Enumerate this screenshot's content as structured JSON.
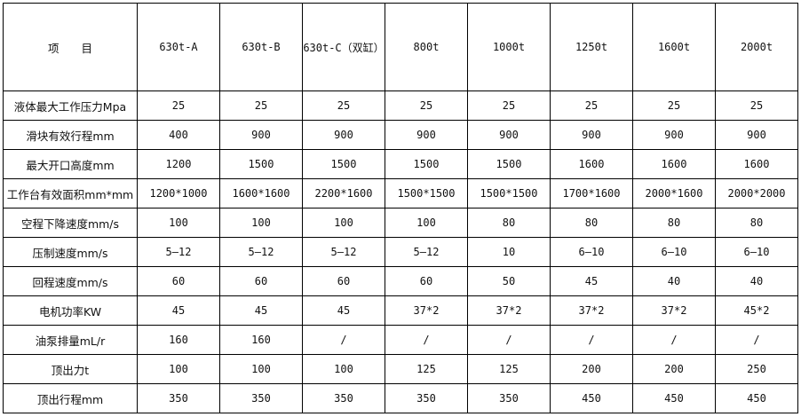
{
  "table": {
    "header": [
      "项　　目",
      "630t-A",
      "630t-B",
      "630t-C（双缸）",
      "800t",
      "1000t",
      "1250t",
      "1600t",
      "2000t"
    ],
    "rows": [
      {
        "label": "液体最大工作压力Mpa",
        "values": [
          "25",
          "25",
          "25",
          "25",
          "25",
          "25",
          "25",
          "25"
        ]
      },
      {
        "label": "滑块有效行程mm",
        "values": [
          "400",
          "900",
          "900",
          "900",
          "900",
          "900",
          "900",
          "900"
        ]
      },
      {
        "label": "最大开口高度mm",
        "values": [
          "1200",
          "1500",
          "1500",
          "1500",
          "1500",
          "1600",
          "1600",
          "1600"
        ]
      },
      {
        "label": "工作台有效面积mm*mm",
        "values": [
          "1200*1000",
          "1600*1600",
          "2200*1600",
          "1500*1500",
          "1500*1500",
          "1700*1600",
          "2000*1600",
          "2000*2000"
        ]
      },
      {
        "label": "空程下降速度mm/s",
        "values": [
          "100",
          "100",
          "100",
          "100",
          "80",
          "80",
          "80",
          "80"
        ]
      },
      {
        "label": "压制速度mm/s",
        "values": [
          "5—12",
          "5—12",
          "5—12",
          "5—12",
          "10",
          "6—10",
          "6—10",
          "6—10"
        ]
      },
      {
        "label": "回程速度mm/s",
        "values": [
          "60",
          "60",
          "60",
          "60",
          "50",
          "45",
          "40",
          "40"
        ]
      },
      {
        "label": "电机功率KW",
        "values": [
          "45",
          "45",
          "45",
          "37*2",
          "37*2",
          "37*2",
          "37*2",
          "45*2"
        ]
      },
      {
        "label": "油泵排量mL/r",
        "values": [
          "160",
          "160",
          "/",
          "/",
          "/",
          "/",
          "/",
          "/"
        ]
      },
      {
        "label": "顶出力t",
        "values": [
          "100",
          "100",
          "100",
          "125",
          "125",
          "200",
          "200",
          "250"
        ]
      },
      {
        "label": "顶出行程mm",
        "values": [
          "350",
          "350",
          "350",
          "350",
          "350",
          "450",
          "450",
          "450"
        ]
      }
    ]
  }
}
